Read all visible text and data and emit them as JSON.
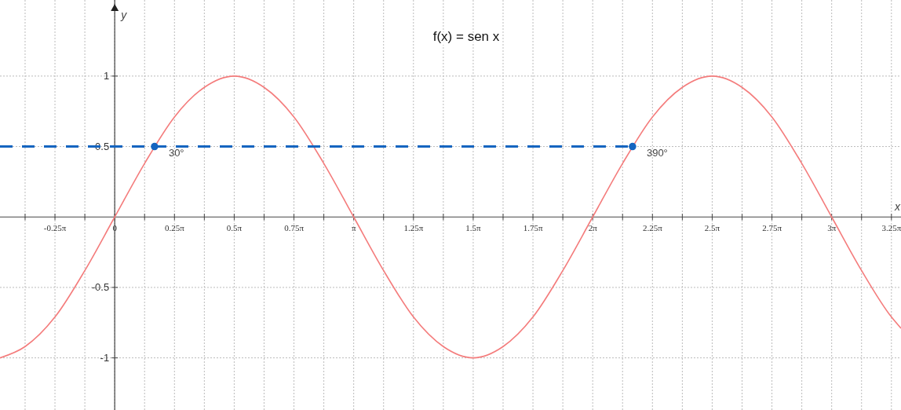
{
  "chart_data": {
    "type": "line",
    "title": "f(x) = sen x",
    "xlabel": "x",
    "ylabel": "y",
    "xlim": [
      -1.508,
      10.336
    ],
    "ylim": [
      -1.37,
      1.54
    ],
    "xticks": [
      {
        "value": -1.1781,
        "label": null
      },
      {
        "value": -0.7854,
        "label": "-0.25π"
      },
      {
        "value": -0.3927,
        "label": null
      },
      {
        "value": 0,
        "label": "0"
      },
      {
        "value": 0.3927,
        "label": null
      },
      {
        "value": 0.7854,
        "label": "0.25π"
      },
      {
        "value": 1.1781,
        "label": null
      },
      {
        "value": 1.5708,
        "label": "0.5π"
      },
      {
        "value": 1.9635,
        "label": null
      },
      {
        "value": 2.3562,
        "label": "0.75π"
      },
      {
        "value": 2.7489,
        "label": null
      },
      {
        "value": 3.1416,
        "label": "π"
      },
      {
        "value": 3.5343,
        "label": null
      },
      {
        "value": 3.927,
        "label": "1.25π"
      },
      {
        "value": 4.3197,
        "label": null
      },
      {
        "value": 4.7124,
        "label": "1.5π"
      },
      {
        "value": 5.1051,
        "label": null
      },
      {
        "value": 5.4978,
        "label": "1.75π"
      },
      {
        "value": 5.8905,
        "label": null
      },
      {
        "value": 6.2832,
        "label": "2π"
      },
      {
        "value": 6.6759,
        "label": null
      },
      {
        "value": 7.0686,
        "label": "2.25π"
      },
      {
        "value": 7.4613,
        "label": null
      },
      {
        "value": 7.854,
        "label": "2.5π"
      },
      {
        "value": 8.2467,
        "label": null
      },
      {
        "value": 8.6394,
        "label": "2.75π"
      },
      {
        "value": 9.0321,
        "label": null
      },
      {
        "value": 9.4248,
        "label": "3π"
      },
      {
        "value": 9.8175,
        "label": null
      },
      {
        "value": 10.2102,
        "label": "3.25π"
      }
    ],
    "yticks": [
      -1,
      -0.5,
      0.5,
      1
    ],
    "grid": true,
    "annotations": [
      {
        "text": "30°",
        "x": 0.5236,
        "y": 0.5
      },
      {
        "text": "390°",
        "x": 6.8068,
        "y": 0.5
      }
    ],
    "series": [
      {
        "color": "#f47c7c",
        "line_style": "solid",
        "x": [
          -1.508,
          -1.1781,
          -0.7854,
          -0.3927,
          0,
          0.3927,
          0.7854,
          1.1781,
          1.5708,
          1.9635,
          2.3562,
          2.7489,
          3.1416,
          3.5343,
          3.927,
          4.3197,
          4.7124,
          5.1051,
          5.4978,
          5.8905,
          6.2832,
          6.6759,
          7.0686,
          7.4613,
          7.854,
          8.2467,
          8.6394,
          9.0321,
          9.4248,
          9.8175,
          10.2102,
          10.336
        ],
        "values": [
          -1.0,
          -0.92,
          -0.71,
          -0.38,
          0,
          0.38,
          0.71,
          0.92,
          1,
          0.92,
          0.71,
          0.38,
          0,
          -0.38,
          -0.71,
          -0.92,
          -1,
          -0.92,
          -0.71,
          -0.38,
          0,
          0.38,
          0.71,
          0.92,
          1,
          0.92,
          0.71,
          0.38,
          0,
          -0.38,
          -0.71,
          -0.79
        ]
      },
      {
        "type": "line",
        "color": "#1565c0",
        "line_style": "dashed",
        "x": [
          -1.508,
          6.8068
        ],
        "values": [
          0.5,
          0.5
        ]
      },
      {
        "type": "scatter",
        "color": "#1565c0",
        "marker": "circle",
        "x": [
          0.5236,
          6.8068
        ],
        "values": [
          0.5,
          0.5
        ]
      }
    ]
  }
}
